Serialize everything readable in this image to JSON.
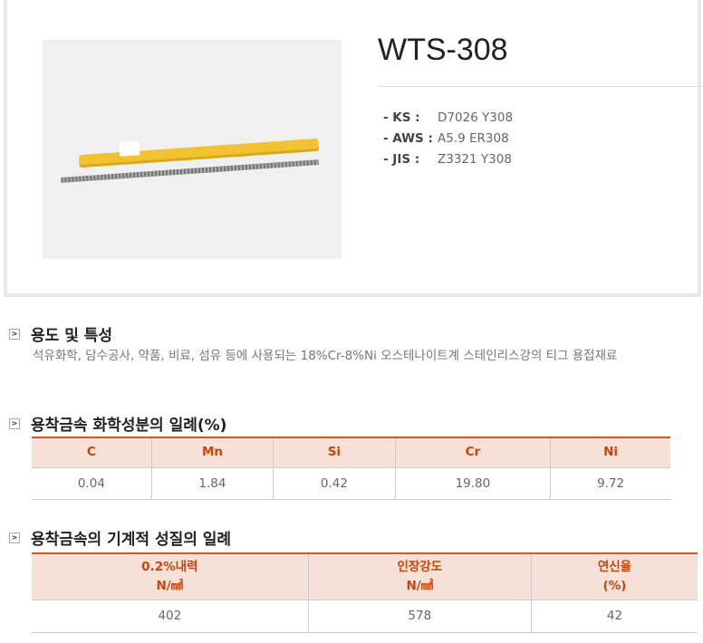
{
  "product": {
    "title": "WTS-308",
    "specs": [
      {
        "key": "- KS :",
        "value": "D7026 Y308"
      },
      {
        "key": "- AWS :",
        "value": "A5.9 ER308"
      },
      {
        "key": "- JIS :",
        "value": "Z3321 Y308"
      }
    ]
  },
  "usage": {
    "heading": "용도 및 특성",
    "text": "석유화학, 담수공사, 약품, 비료, 섬유 등에 사용되는 18%Cr-8%Ni 오스테나이트계 스테인리스강의 티그 용접재료"
  },
  "chemical": {
    "heading": "용착금속 화학성분의 일례(%)",
    "headers": [
      "C",
      "Mn",
      "Si",
      "Cr",
      "Ni"
    ],
    "values": [
      "0.04",
      "1.84",
      "0.42",
      "19.80",
      "9.72"
    ]
  },
  "mechanical": {
    "heading": "용착금속의 기계적 성질의 일례",
    "headers": [
      [
        "0.2%내력",
        "N/㎟"
      ],
      [
        "인장강도",
        "N/㎟"
      ],
      [
        "연신율",
        "(%)"
      ]
    ],
    "values": [
      "402",
      "578",
      "42"
    ]
  },
  "icons": {
    "section": "chevron-right-icon"
  }
}
